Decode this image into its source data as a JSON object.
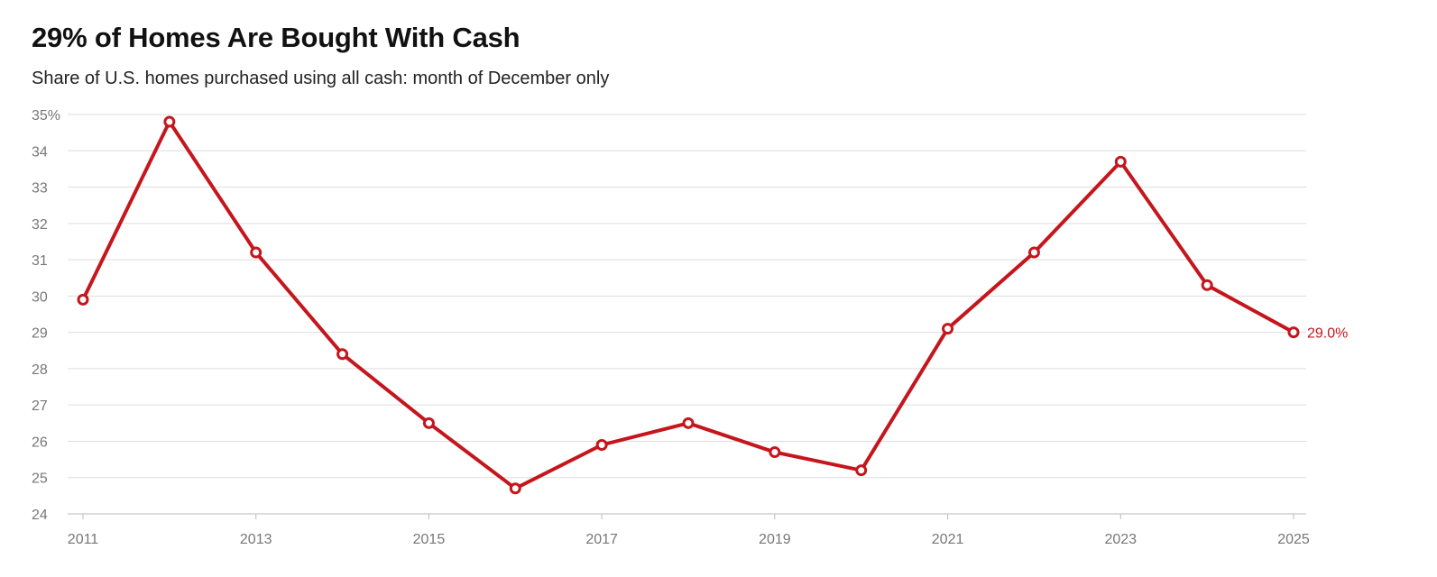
{
  "chart_data": {
    "type": "line",
    "title": "29% of Homes Are Bought With Cash",
    "subtitle": "Share of U.S. homes purchased using all cash: month of December only",
    "x": [
      2011,
      2012,
      2013,
      2014,
      2015,
      2016,
      2017,
      2018,
      2019,
      2020,
      2021,
      2022,
      2023,
      2024,
      2025
    ],
    "series": [
      {
        "values": [
          29.9,
          34.8,
          31.2,
          28.4,
          26.5,
          24.7,
          25.9,
          26.5,
          25.7,
          25.2,
          29.1,
          31.2,
          33.7,
          30.3,
          29.0
        ]
      }
    ],
    "x_ticks": [
      "2011",
      "2013",
      "2015",
      "2017",
      "2019",
      "2021",
      "2023",
      "2025"
    ],
    "y_ticks": [
      "24",
      "25",
      "26",
      "27",
      "28",
      "29",
      "30",
      "31",
      "32",
      "33",
      "34",
      "35%"
    ],
    "ylim": [
      24,
      35
    ],
    "xlim": [
      2011,
      2025
    ],
    "grid": true,
    "end_label": "29.0%",
    "colors": {
      "line": "#c4161c",
      "grid": "#dddddd",
      "axis": "#bbbbbb",
      "tick_text": "#777777"
    }
  }
}
